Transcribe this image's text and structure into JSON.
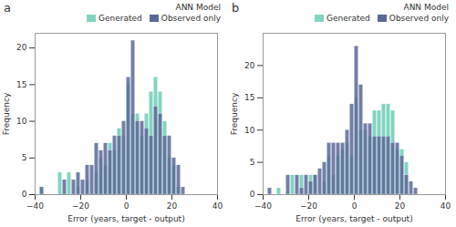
{
  "chart_data": [
    {
      "type": "histogram",
      "title": "a",
      "subtitle": "ANN Model",
      "xlabel": "Error (years, target - output)",
      "ylabel": "Frequency",
      "bins": [
        -40,
        -38,
        -36,
        -34,
        -32,
        -30,
        -28,
        -26,
        -24,
        -22,
        -20,
        -18,
        -16,
        -14,
        -12,
        -10,
        -8,
        -6,
        -4,
        -2,
        0,
        2,
        4,
        6,
        8,
        10,
        12,
        14,
        16,
        18,
        20,
        22,
        24,
        26,
        28,
        30,
        32,
        34,
        36,
        38,
        40
      ],
      "series": [
        {
          "name": "Generated",
          "color": "#82d4c0",
          "values": [
            0,
            1,
            0,
            0,
            0,
            3,
            0,
            3,
            0,
            1,
            0,
            2,
            0,
            3,
            5,
            4,
            7,
            6,
            9,
            8,
            15,
            11,
            11,
            8,
            11,
            14,
            16,
            14,
            10,
            5,
            4,
            1,
            0,
            0,
            0,
            0,
            0,
            0,
            0,
            0
          ]
        },
        {
          "name": "Observed only",
          "color": "#5a6898",
          "values": [
            0,
            1,
            0,
            0,
            0,
            0,
            2,
            0,
            2,
            3,
            2,
            4,
            4,
            7,
            6,
            7,
            6,
            8,
            8,
            10,
            16,
            21,
            10,
            10,
            9,
            8,
            12,
            11,
            8,
            8,
            5,
            4,
            1,
            0,
            0,
            0,
            0,
            0,
            0,
            0
          ]
        }
      ],
      "xlim": [
        -40,
        40
      ],
      "xticks": [
        -40,
        -20,
        0,
        20,
        40
      ],
      "ylim": [
        0,
        22
      ],
      "yticks": [
        0,
        5,
        10,
        15,
        20
      ],
      "stacked": false,
      "grid": false,
      "legend": "upper right"
    },
    {
      "type": "histogram",
      "title": "b",
      "subtitle": "ANN Model",
      "xlabel": "Error (years, target - output)",
      "ylabel": "Frequency",
      "bins": [
        -40,
        -38,
        -36,
        -34,
        -32,
        -30,
        -28,
        -26,
        -24,
        -22,
        -20,
        -18,
        -16,
        -14,
        -12,
        -10,
        -8,
        -6,
        -4,
        -2,
        0,
        2,
        4,
        6,
        8,
        10,
        12,
        14,
        16,
        18,
        20,
        22,
        24,
        26,
        28,
        30,
        32,
        34,
        36,
        38,
        40
      ],
      "series": [
        {
          "name": "Generated",
          "color": "#82d4c0",
          "values": [
            0,
            0,
            0,
            1,
            0,
            0,
            3,
            0,
            3,
            0,
            3,
            3,
            0,
            2,
            6,
            3,
            6,
            7,
            8,
            6,
            15,
            10,
            10,
            9,
            13,
            13,
            14,
            14,
            13,
            7,
            7,
            5,
            0,
            0,
            0,
            0,
            0,
            0,
            0,
            0
          ]
        },
        {
          "name": "Observed only",
          "color": "#5a6898",
          "values": [
            0,
            1,
            0,
            0,
            0,
            3,
            0,
            3,
            1,
            3,
            2,
            3,
            4,
            5,
            8,
            8,
            8,
            8,
            10,
            14,
            23,
            17,
            11,
            11,
            9,
            9,
            9,
            9,
            8,
            8,
            6,
            3,
            2,
            1,
            0,
            0,
            0,
            0,
            0,
            0
          ]
        }
      ],
      "xlim": [
        -40,
        40
      ],
      "xticks": [
        -40,
        -20,
        0,
        20,
        40
      ],
      "ylim": [
        0,
        25
      ],
      "yticks": [
        0,
        5,
        10,
        15,
        20
      ],
      "stacked": false,
      "grid": false,
      "legend": "upper right"
    }
  ]
}
